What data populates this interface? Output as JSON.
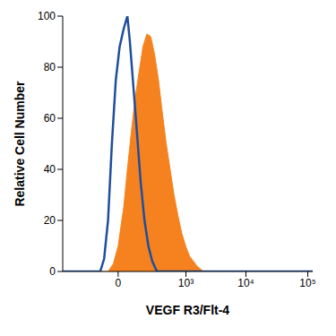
{
  "chart_data": {
    "type": "line",
    "x_label": "VEGF R3/Flt-4",
    "y_label": "Relative Cell Number",
    "log": "x",
    "xlim": [
      -600,
      120000
    ],
    "xticks": [
      0,
      {
        "value": 1000,
        "label": "10³"
      },
      {
        "value": 10000,
        "label": "10⁴"
      },
      {
        "value": 100000,
        "label": "10⁵"
      }
    ],
    "ylim": [
      0,
      100
    ],
    "yticks": [
      0,
      20,
      40,
      60,
      80,
      100
    ],
    "series": [
      {
        "type": "area",
        "color": "#f5821f",
        "x": [
          -600,
          -40,
          -17,
          0,
          20,
          36,
          56,
          78,
          103,
          133,
          167,
          207,
          252,
          305,
          366,
          436,
          517,
          611,
          719,
          844,
          988,
          1155,
          1347,
          1570,
          1999,
          120000
        ],
        "values": [
          0,
          0,
          3,
          10,
          25,
          40,
          55,
          68,
          78,
          88,
          93,
          92,
          85,
          75,
          62,
          50,
          40,
          30,
          22,
          15,
          10,
          6,
          4,
          2,
          0,
          0
        ]
      },
      {
        "type": "line",
        "color": "#1f4e9c",
        "x": [
          -600,
          -83,
          -60,
          -40,
          -23,
          -8,
          5,
          20,
          36,
          48,
          64,
          88,
          115,
          146,
          182,
          224,
          283,
          120000
        ],
        "values": [
          0,
          0,
          5,
          20,
          50,
          75,
          88,
          95,
          100,
          90,
          75,
          55,
          35,
          20,
          10,
          4,
          0,
          0
        ]
      }
    ]
  }
}
